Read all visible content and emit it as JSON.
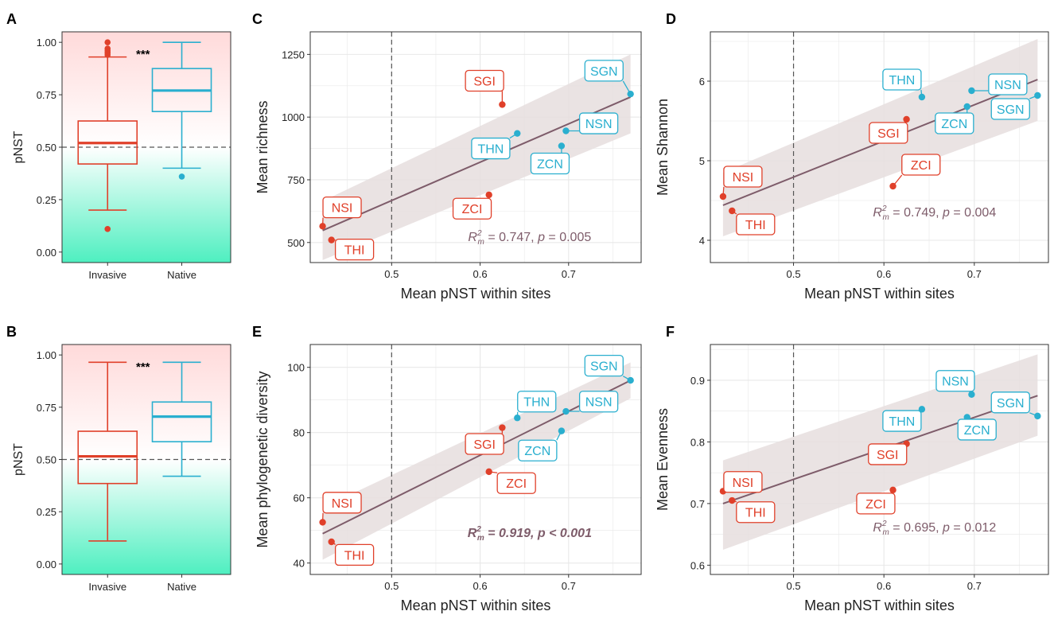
{
  "figure": {
    "colors": {
      "invasive": "#E0402A",
      "native": "#2AAFCF",
      "trend": "#7E5C6A",
      "band": "#E6DEDE",
      "grid": "#E8E8E8",
      "axis": "#333333",
      "pink": "#FFDADA",
      "mint": "#4EEFC0"
    }
  },
  "chart_data": [
    {
      "id": "A",
      "panel_label": "A",
      "type": "boxplot",
      "ylabel": "pNST",
      "ylim": [
        -0.05,
        1.05
      ],
      "yticks": [
        0,
        0.25,
        0.5,
        0.75,
        1
      ],
      "ytick_labels": [
        "0.00",
        "0.25",
        "0.50",
        "0.75",
        "1.00"
      ],
      "reference_line": 0.5,
      "significance": "***",
      "groups": [
        {
          "name": "Invasive",
          "color_key": "invasive",
          "q1": 0.42,
          "median": 0.52,
          "q3": 0.625,
          "whisker_low": 0.2,
          "whisker_high": 0.93,
          "outliers": [
            0.11,
            0.94,
            0.95,
            0.96,
            0.97,
            1.0
          ]
        },
        {
          "name": "Native",
          "color_key": "native",
          "q1": 0.67,
          "median": 0.77,
          "q3": 0.875,
          "whisker_low": 0.4,
          "whisker_high": 1.0,
          "outliers": [
            0.36
          ]
        }
      ]
    },
    {
      "id": "B",
      "panel_label": "B",
      "type": "boxplot",
      "ylabel": "pNST",
      "ylim": [
        -0.05,
        1.05
      ],
      "yticks": [
        0,
        0.25,
        0.5,
        0.75,
        1
      ],
      "ytick_labels": [
        "0.00",
        "0.25",
        "0.50",
        "0.75",
        "1.00"
      ],
      "reference_line": 0.5,
      "significance": "***",
      "groups": [
        {
          "name": "Invasive",
          "color_key": "invasive",
          "q1": 0.385,
          "median": 0.515,
          "q3": 0.635,
          "whisker_low": 0.11,
          "whisker_high": 0.965,
          "outliers": []
        },
        {
          "name": "Native",
          "color_key": "native",
          "q1": 0.585,
          "median": 0.705,
          "q3": 0.775,
          "whisker_low": 0.42,
          "whisker_high": 0.965,
          "outliers": []
        }
      ]
    },
    {
      "id": "C",
      "panel_label": "C",
      "type": "scatter",
      "xlabel": "Mean pNST within sites",
      "ylabel": "Mean richness",
      "xlim": [
        0.408,
        0.782
      ],
      "ylim": [
        420,
        1340
      ],
      "xticks": [
        0.5,
        0.6,
        0.7
      ],
      "xtick_labels": [
        "0.5",
        "0.6",
        "0.7"
      ],
      "yticks": [
        500,
        750,
        1000,
        1250
      ],
      "ytick_labels": [
        "500",
        "750",
        "1000",
        "1250"
      ],
      "vline": 0.5,
      "fit": {
        "x": [
          0.422,
          0.77
        ],
        "y": [
          548,
          1080
        ],
        "band_lower": [
          430,
          935
        ],
        "band_upper": [
          665,
          1250
        ]
      },
      "annotation": {
        "r2_symbol": "R",
        "sup": "2",
        "sub": "m",
        "text": " = 0.747, ",
        "p_symbol": "p",
        "p_text": " = 0.005",
        "bold": false,
        "x": 0.656,
        "y": 505
      },
      "points": [
        {
          "label": "NSI",
          "group": "invasive",
          "x": 0.422,
          "y": 565,
          "lx": 0.444,
          "ly": 640
        },
        {
          "label": "THI",
          "group": "invasive",
          "x": 0.432,
          "y": 510,
          "lx": 0.458,
          "ly": 472
        },
        {
          "label": "SGI",
          "group": "invasive",
          "x": 0.625,
          "y": 1050,
          "lx": 0.605,
          "ly": 1145
        },
        {
          "label": "ZCI",
          "group": "invasive",
          "x": 0.61,
          "y": 690,
          "lx": 0.591,
          "ly": 635
        },
        {
          "label": "THN",
          "group": "native",
          "x": 0.642,
          "y": 935,
          "lx": 0.612,
          "ly": 875
        },
        {
          "label": "ZCN",
          "group": "native",
          "x": 0.692,
          "y": 885,
          "lx": 0.679,
          "ly": 815
        },
        {
          "label": "NSN",
          "group": "native",
          "x": 0.697,
          "y": 945,
          "lx": 0.734,
          "ly": 975
        },
        {
          "label": "SGN",
          "group": "native",
          "x": 0.77,
          "y": 1092,
          "lx": 0.74,
          "ly": 1185
        }
      ]
    },
    {
      "id": "D",
      "panel_label": "D",
      "type": "scatter",
      "xlabel": "Mean pNST within sites",
      "ylabel": "Mean Shannon",
      "xlim": [
        0.408,
        0.782
      ],
      "ylim": [
        3.72,
        6.62
      ],
      "xticks": [
        0.5,
        0.6,
        0.7
      ],
      "xtick_labels": [
        "0.5",
        "0.6",
        "0.7"
      ],
      "yticks": [
        4,
        5,
        6
      ],
      "ytick_labels": [
        "4",
        "5",
        "6"
      ],
      "vline": 0.5,
      "fit": {
        "x": [
          0.422,
          0.77
        ],
        "y": [
          4.44,
          6.02
        ],
        "band_lower": [
          4.05,
          5.5
        ],
        "band_upper": [
          4.85,
          6.53
        ]
      },
      "annotation": {
        "r2_symbol": "R",
        "sup": "2",
        "sub": "m",
        "text": " = 0.749, ",
        "p_symbol": "p",
        "p_text": " = 0.004",
        "bold": false,
        "x": 0.656,
        "y": 4.3
      },
      "points": [
        {
          "label": "NSI",
          "group": "invasive",
          "x": 0.422,
          "y": 4.55,
          "lx": 0.444,
          "ly": 4.8
        },
        {
          "label": "THI",
          "group": "invasive",
          "x": 0.432,
          "y": 4.37,
          "lx": 0.458,
          "ly": 4.2
        },
        {
          "label": "SGI",
          "group": "invasive",
          "x": 0.625,
          "y": 5.52,
          "lx": 0.605,
          "ly": 5.35
        },
        {
          "label": "ZCI",
          "group": "invasive",
          "x": 0.61,
          "y": 4.68,
          "lx": 0.641,
          "ly": 4.95
        },
        {
          "label": "THN",
          "group": "native",
          "x": 0.642,
          "y": 5.8,
          "lx": 0.62,
          "ly": 6.02
        },
        {
          "label": "ZCN",
          "group": "native",
          "x": 0.692,
          "y": 5.68,
          "lx": 0.678,
          "ly": 5.47
        },
        {
          "label": "NSN",
          "group": "native",
          "x": 0.697,
          "y": 5.88,
          "lx": 0.737,
          "ly": 5.96
        },
        {
          "label": "SGN",
          "group": "native",
          "x": 0.77,
          "y": 5.82,
          "lx": 0.74,
          "ly": 5.65
        }
      ]
    },
    {
      "id": "E",
      "panel_label": "E",
      "type": "scatter",
      "xlabel": "Mean pNST within sites",
      "ylabel": "Mean phylogenetic diversity",
      "xlim": [
        0.408,
        0.782
      ],
      "ylim": [
        36.5,
        107
      ],
      "xticks": [
        0.5,
        0.6,
        0.7
      ],
      "xtick_labels": [
        "0.5",
        "0.6",
        "0.7"
      ],
      "yticks": [
        40,
        60,
        80,
        100
      ],
      "ytick_labels": [
        "40",
        "60",
        "80",
        "100"
      ],
      "vline": 0.5,
      "fit": {
        "x": [
          0.422,
          0.77
        ],
        "y": [
          49,
          96
        ],
        "band_lower": [
          41,
          90.5
        ],
        "band_upper": [
          57,
          101.5
        ]
      },
      "annotation": {
        "r2_symbol": "R",
        "sup": "2",
        "sub": "m",
        "text": " = 0.919, ",
        "p_symbol": "p",
        "p_text": " < 0.001",
        "bold": true,
        "x": 0.656,
        "y": 48
      },
      "points": [
        {
          "label": "NSI",
          "group": "invasive",
          "x": 0.422,
          "y": 52.5,
          "lx": 0.444,
          "ly": 58.5
        },
        {
          "label": "THI",
          "group": "invasive",
          "x": 0.432,
          "y": 46.5,
          "lx": 0.458,
          "ly": 42.5
        },
        {
          "label": "SGI",
          "group": "invasive",
          "x": 0.625,
          "y": 81.5,
          "lx": 0.605,
          "ly": 76.5
        },
        {
          "label": "ZCI",
          "group": "invasive",
          "x": 0.61,
          "y": 68,
          "lx": 0.641,
          "ly": 64.5
        },
        {
          "label": "THN",
          "group": "native",
          "x": 0.642,
          "y": 84.5,
          "lx": 0.664,
          "ly": 89.5
        },
        {
          "label": "ZCN",
          "group": "native",
          "x": 0.692,
          "y": 80.5,
          "lx": 0.665,
          "ly": 74.5
        },
        {
          "label": "NSN",
          "group": "native",
          "x": 0.697,
          "y": 86.5,
          "lx": 0.734,
          "ly": 89.5
        },
        {
          "label": "SGN",
          "group": "native",
          "x": 0.77,
          "y": 96,
          "lx": 0.74,
          "ly": 100.5
        }
      ]
    },
    {
      "id": "F",
      "panel_label": "F",
      "type": "scatter",
      "xlabel": "Mean pNST within sites",
      "ylabel": "Mean Evenness",
      "xlim": [
        0.408,
        0.782
      ],
      "ylim": [
        0.585,
        0.958
      ],
      "xticks": [
        0.5,
        0.6,
        0.7
      ],
      "xtick_labels": [
        "0.5",
        "0.6",
        "0.7"
      ],
      "yticks": [
        0.6,
        0.7,
        0.8,
        0.9
      ],
      "ytick_labels": [
        "0.6",
        "0.7",
        "0.8",
        "0.9"
      ],
      "vline": 0.5,
      "fit": {
        "x": [
          0.422,
          0.77
        ],
        "y": [
          0.7,
          0.875
        ],
        "band_lower": [
          0.625,
          0.81
        ],
        "band_upper": [
          0.77,
          0.942
        ]
      },
      "annotation": {
        "r2_symbol": "R",
        "sup": "2",
        "sub": "m",
        "text": " = 0.695, ",
        "p_symbol": "p",
        "p_text": " = 0.012",
        "bold": false,
        "x": 0.656,
        "y": 0.655
      },
      "points": [
        {
          "label": "NSI",
          "group": "invasive",
          "x": 0.422,
          "y": 0.72,
          "lx": 0.444,
          "ly": 0.735
        },
        {
          "label": "THI",
          "group": "invasive",
          "x": 0.432,
          "y": 0.705,
          "lx": 0.458,
          "ly": 0.686
        },
        {
          "label": "SGI",
          "group": "invasive",
          "x": 0.625,
          "y": 0.797,
          "lx": 0.604,
          "ly": 0.78
        },
        {
          "label": "ZCI",
          "group": "invasive",
          "x": 0.61,
          "y": 0.722,
          "lx": 0.591,
          "ly": 0.7
        },
        {
          "label": "THN",
          "group": "native",
          "x": 0.642,
          "y": 0.853,
          "lx": 0.62,
          "ly": 0.834
        },
        {
          "label": "ZCN",
          "group": "native",
          "x": 0.692,
          "y": 0.84,
          "lx": 0.703,
          "ly": 0.82
        },
        {
          "label": "NSN",
          "group": "native",
          "x": 0.697,
          "y": 0.877,
          "lx": 0.679,
          "ly": 0.899
        },
        {
          "label": "SGN",
          "group": "native",
          "x": 0.77,
          "y": 0.842,
          "lx": 0.74,
          "ly": 0.864
        }
      ]
    }
  ]
}
